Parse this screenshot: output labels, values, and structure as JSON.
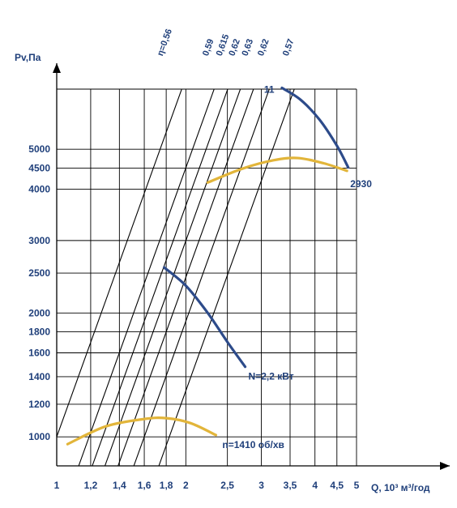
{
  "chart_data": {
    "type": "line",
    "title": "",
    "xlabel": "Q, 10³ м³/год",
    "ylabel": "Pv,Па",
    "x_scale": "log",
    "y_scale": "log",
    "xlim": [
      1,
      5
    ],
    "ylim": [
      850,
      7000
    ],
    "x_ticks": [
      1,
      1.2,
      1.4,
      1.6,
      1.8,
      2,
      2.5,
      3,
      3.5,
      4,
      4.5,
      5
    ],
    "x_tick_labels": [
      "1",
      "1,2",
      "1,4",
      "1,6",
      "1,8",
      "2",
      "2,5",
      "3",
      "3,5",
      "4",
      "4,5",
      "5"
    ],
    "y_ticks": [
      1000,
      1200,
      1400,
      1600,
      1800,
      2000,
      2500,
      3000,
      4000,
      4500,
      5000
    ],
    "y_tick_labels": [
      "1000",
      "1200",
      "1400",
      "1600",
      "1800",
      "2000",
      "2500",
      "3000",
      "4000",
      "4500",
      "5000"
    ],
    "grid": true,
    "efficiency_lines": [
      {
        "label": "η=0,56",
        "q_at_1000": 1.0
      },
      {
        "label": "0,59",
        "q_at_1000": 1.19
      },
      {
        "label": "0,615",
        "q_at_1000": 1.28
      },
      {
        "label": "0,62",
        "q_at_1000": 1.37
      },
      {
        "label": "0,63",
        "q_at_1000": 1.47
      },
      {
        "label": "0,62",
        "q_at_1000": 1.6
      },
      {
        "label": "0,57",
        "q_at_1000": 1.83
      }
    ],
    "series": [
      {
        "kind": "pressure",
        "rpm_label": "n=1410 об/хв",
        "color": "#e2b53a",
        "points": [
          [
            1.06,
            960
          ],
          [
            1.3,
            1060
          ],
          [
            1.6,
            1105
          ],
          [
            1.8,
            1110
          ],
          [
            2.05,
            1080
          ],
          [
            2.35,
            1010
          ]
        ]
      },
      {
        "kind": "pressure",
        "rpm_label": "2930",
        "color": "#e2b53a",
        "points": [
          [
            2.25,
            4150
          ],
          [
            2.7,
            4480
          ],
          [
            3.2,
            4700
          ],
          [
            3.65,
            4760
          ],
          [
            4.2,
            4620
          ],
          [
            4.75,
            4430
          ]
        ]
      },
      {
        "kind": "power",
        "power_label": "N=2,2 кВт",
        "color": "#2d4b8a",
        "points": [
          [
            1.78,
            2580
          ],
          [
            2.0,
            2330
          ],
          [
            2.25,
            2000
          ],
          [
            2.5,
            1700
          ],
          [
            2.75,
            1480
          ]
        ]
      },
      {
        "kind": "power",
        "power_label": "11",
        "color": "#2d4b8a",
        "points": [
          [
            3.35,
            7050
          ],
          [
            3.7,
            6600
          ],
          [
            4.1,
            5900
          ],
          [
            4.5,
            5100
          ],
          [
            4.78,
            4520
          ]
        ]
      }
    ],
    "colors": {
      "pressure": "#e2b53a",
      "power": "#2d4b8a",
      "text": "#1f3f7a",
      "grid": "#000000"
    }
  }
}
